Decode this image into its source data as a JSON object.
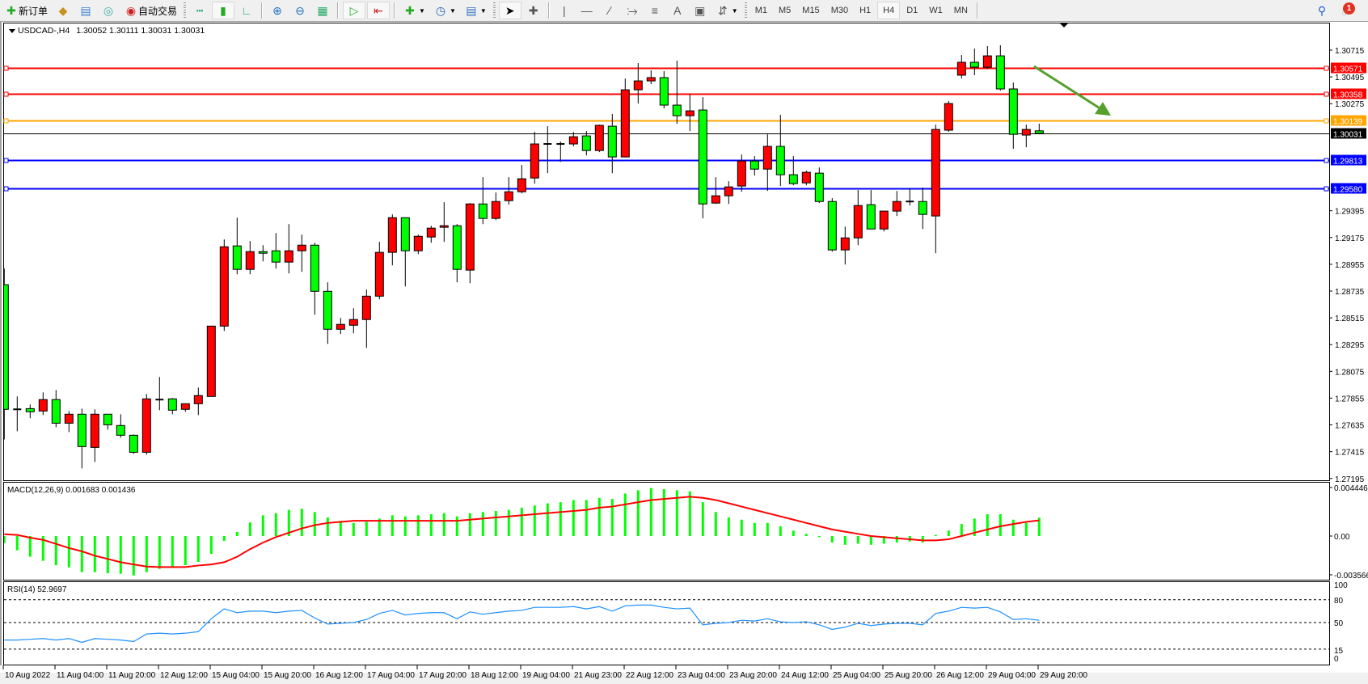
{
  "toolbar": {
    "new_order_label": "新订单",
    "auto_trading_label": "自动交易",
    "timeframes": [
      "M1",
      "M5",
      "M15",
      "M30",
      "H1",
      "H4",
      "D1",
      "W1",
      "MN"
    ],
    "active_timeframe": "H4",
    "notification_count": "1",
    "icons": [
      "new-order-icon",
      "gold-bars-icon",
      "market-watch-icon",
      "signals-icon",
      "auto-trading-icon",
      "bar-chart-icon",
      "candlestick-icon",
      "line-chart-icon",
      "zoom-in-icon",
      "zoom-out-icon",
      "tile-windows-icon",
      "auto-scroll-icon",
      "chart-shift-icon",
      "new-chart-icon",
      "periods-clock-icon",
      "templates-icon",
      "cursor-icon",
      "crosshair-icon",
      "vertical-line-icon",
      "horizontal-line-icon",
      "trendline-icon",
      "equidistant-channel-icon",
      "fibonacci-icon",
      "text-icon",
      "text-label-icon",
      "arrows-icon",
      "search-icon",
      "chat-icon"
    ]
  },
  "chart": {
    "symbol": "USDCAD-,H4",
    "quote": "1.30052 1.30111 1.30031 1.30031",
    "colors": {
      "bull": "#ff0000",
      "bear": "#00ff00",
      "background": "#ffffff",
      "macd_hist": "#00ff00",
      "macd_signal": "#ff0000",
      "rsi": "#1e90ff",
      "arrow": "#56a02e"
    },
    "price_ticks": [
      "1.30715",
      "1.30495",
      "1.30275",
      "1.29395",
      "1.29175",
      "1.28955",
      "1.28735",
      "1.28515",
      "1.28295",
      "1.28075",
      "1.27855",
      "1.27635",
      "1.27415",
      "1.27195"
    ],
    "levels": [
      {
        "price": "1.30571",
        "color": "#ff0000"
      },
      {
        "price": "1.30358",
        "color": "#ff0000"
      },
      {
        "price": "1.30139",
        "color": "#ffa500"
      },
      {
        "price": "1.30031",
        "color": "#000000",
        "current": true
      },
      {
        "price": "1.29813",
        "color": "#0000ff"
      },
      {
        "price": "1.29580",
        "color": "#0000ff"
      }
    ],
    "time_labels": [
      "10 Aug 2022",
      "11 Aug 04:00",
      "11 Aug 20:00",
      "12 Aug 12:00",
      "15 Aug 04:00",
      "15 Aug 20:00",
      "16 Aug 12:00",
      "17 Aug 04:00",
      "17 Aug 20:00",
      "18 Aug 12:00",
      "19 Aug 04:00",
      "21 Aug 23:00",
      "22 Aug 12:00",
      "23 Aug 04:00",
      "23 Aug 20:00",
      "24 Aug 12:00",
      "25 Aug 04:00",
      "25 Aug 20:00",
      "26 Aug 12:00",
      "29 Aug 04:00",
      "29 Aug 20:00"
    ]
  },
  "macd": {
    "label": "MACD(12,26,9) 0.001683 0.001436",
    "axis": {
      "max": "0.004446",
      "zero": "0.00",
      "min": "-0.003566"
    }
  },
  "rsi": {
    "label": "RSI(14) 52.9697",
    "levels": [
      "100",
      "80",
      "50",
      "15",
      "0"
    ]
  },
  "chart_data": [
    {
      "type": "candlestick",
      "title": "USDCAD-,H4",
      "ylim": [
        1.27195,
        1.30715
      ],
      "x_tick_labels": [
        "10 Aug 2022",
        "11 Aug 04:00",
        "11 Aug 20:00",
        "12 Aug 12:00",
        "15 Aug 04:00",
        "15 Aug 20:00",
        "16 Aug 12:00",
        "17 Aug 04:00",
        "17 Aug 20:00",
        "18 Aug 12:00",
        "19 Aug 04:00",
        "21 Aug 23:00",
        "22 Aug 12:00",
        "23 Aug 04:00",
        "23 Aug 20:00",
        "24 Aug 12:00",
        "25 Aug 04:00",
        "25 Aug 20:00",
        "26 Aug 12:00",
        "29 Aug 04:00",
        "29 Aug 20:00"
      ],
      "ohlc": [
        {
          "o": 1.28787,
          "h": 1.2892,
          "l": 1.27516,
          "c": 1.27763
        },
        {
          "o": 1.27763,
          "h": 1.27869,
          "l": 1.27583,
          "c": 1.27763
        },
        {
          "o": 1.27769,
          "h": 1.27803,
          "l": 1.2769,
          "c": 1.27743
        },
        {
          "o": 1.27749,
          "h": 1.27902,
          "l": 1.27716,
          "c": 1.27843
        },
        {
          "o": 1.27843,
          "h": 1.27922,
          "l": 1.27616,
          "c": 1.27649
        },
        {
          "o": 1.27649,
          "h": 1.27749,
          "l": 1.27576,
          "c": 1.27723
        },
        {
          "o": 1.27723,
          "h": 1.27769,
          "l": 1.27277,
          "c": 1.27457
        },
        {
          "o": 1.2745,
          "h": 1.27763,
          "l": 1.2733,
          "c": 1.27723
        },
        {
          "o": 1.27723,
          "h": 1.27723,
          "l": 1.27596,
          "c": 1.27636
        },
        {
          "o": 1.2763,
          "h": 1.27723,
          "l": 1.2753,
          "c": 1.2755
        },
        {
          "o": 1.2755,
          "h": 1.27556,
          "l": 1.27397,
          "c": 1.2741
        },
        {
          "o": 1.2741,
          "h": 1.27889,
          "l": 1.2739,
          "c": 1.27849
        },
        {
          "o": 1.27843,
          "h": 1.28029,
          "l": 1.27756,
          "c": 1.27843
        },
        {
          "o": 1.27849,
          "h": 1.27856,
          "l": 1.27723,
          "c": 1.27756
        },
        {
          "o": 1.27763,
          "h": 1.27809,
          "l": 1.27743,
          "c": 1.27809
        },
        {
          "o": 1.27809,
          "h": 1.27942,
          "l": 1.27716,
          "c": 1.27876
        },
        {
          "o": 1.27869,
          "h": 1.28447,
          "l": 1.27869,
          "c": 1.28447
        },
        {
          "o": 1.28447,
          "h": 1.29159,
          "l": 1.28407,
          "c": 1.29099
        },
        {
          "o": 1.29106,
          "h": 1.29338,
          "l": 1.28873,
          "c": 1.28913
        },
        {
          "o": 1.28913,
          "h": 1.29146,
          "l": 1.28873,
          "c": 1.29059
        },
        {
          "o": 1.29059,
          "h": 1.29112,
          "l": 1.28979,
          "c": 1.29046
        },
        {
          "o": 1.29066,
          "h": 1.29212,
          "l": 1.2892,
          "c": 1.28973
        },
        {
          "o": 1.28973,
          "h": 1.29285,
          "l": 1.2888,
          "c": 1.29066
        },
        {
          "o": 1.29066,
          "h": 1.29199,
          "l": 1.28893,
          "c": 1.29112
        },
        {
          "o": 1.29112,
          "h": 1.29132,
          "l": 1.2854,
          "c": 1.28733
        },
        {
          "o": 1.28733,
          "h": 1.28807,
          "l": 1.28301,
          "c": 1.28421
        },
        {
          "o": 1.28421,
          "h": 1.28514,
          "l": 1.28381,
          "c": 1.28461
        },
        {
          "o": 1.28454,
          "h": 1.28594,
          "l": 1.28388,
          "c": 1.28501
        },
        {
          "o": 1.28501,
          "h": 1.28747,
          "l": 1.28268,
          "c": 1.28693
        },
        {
          "o": 1.28693,
          "h": 1.29139,
          "l": 1.28667,
          "c": 1.29053
        },
        {
          "o": 1.29053,
          "h": 1.29365,
          "l": 1.28946,
          "c": 1.29338
        },
        {
          "o": 1.29338,
          "h": 1.29338,
          "l": 1.28773,
          "c": 1.29066
        },
        {
          "o": 1.29066,
          "h": 1.29199,
          "l": 1.29039,
          "c": 1.29185
        },
        {
          "o": 1.29179,
          "h": 1.29272,
          "l": 1.29132,
          "c": 1.29252
        },
        {
          "o": 1.29259,
          "h": 1.29465,
          "l": 1.29139,
          "c": 1.29272
        },
        {
          "o": 1.29272,
          "h": 1.29285,
          "l": 1.28807,
          "c": 1.28913
        },
        {
          "o": 1.28907,
          "h": 1.29458,
          "l": 1.288,
          "c": 1.29451
        },
        {
          "o": 1.29451,
          "h": 1.29671,
          "l": 1.29285,
          "c": 1.29332
        },
        {
          "o": 1.29332,
          "h": 1.29545,
          "l": 1.29318,
          "c": 1.29471
        },
        {
          "o": 1.29478,
          "h": 1.29671,
          "l": 1.29445,
          "c": 1.29551
        },
        {
          "o": 1.29551,
          "h": 1.29771,
          "l": 1.29538,
          "c": 1.29658
        },
        {
          "o": 1.29664,
          "h": 1.30043,
          "l": 1.29618,
          "c": 1.29944
        },
        {
          "o": 1.29944,
          "h": 1.3009,
          "l": 1.29704,
          "c": 1.29944
        },
        {
          "o": 1.29944,
          "h": 1.29964,
          "l": 1.29797,
          "c": 1.29944
        },
        {
          "o": 1.29944,
          "h": 1.30043,
          "l": 1.29924,
          "c": 1.30003
        },
        {
          "o": 1.3001,
          "h": 1.3005,
          "l": 1.2985,
          "c": 1.2989
        },
        {
          "o": 1.2989,
          "h": 1.30103,
          "l": 1.29877,
          "c": 1.30097
        },
        {
          "o": 1.3009,
          "h": 1.3019,
          "l": 1.29704,
          "c": 1.29837
        },
        {
          "o": 1.29837,
          "h": 1.30482,
          "l": 1.29837,
          "c": 1.30389
        },
        {
          "o": 1.30389,
          "h": 1.30609,
          "l": 1.30276,
          "c": 1.30462
        },
        {
          "o": 1.30462,
          "h": 1.30549,
          "l": 1.30436,
          "c": 1.30489
        },
        {
          "o": 1.30489,
          "h": 1.30542,
          "l": 1.30236,
          "c": 1.30263
        },
        {
          "o": 1.30263,
          "h": 1.30629,
          "l": 1.3011,
          "c": 1.30176
        },
        {
          "o": 1.30176,
          "h": 1.30349,
          "l": 1.3005,
          "c": 1.30216
        },
        {
          "o": 1.30223,
          "h": 1.30329,
          "l": 1.29332,
          "c": 1.29451
        },
        {
          "o": 1.29458,
          "h": 1.29671,
          "l": 1.29451,
          "c": 1.29518
        },
        {
          "o": 1.29518,
          "h": 1.29638,
          "l": 1.29451,
          "c": 1.29591
        },
        {
          "o": 1.29598,
          "h": 1.29857,
          "l": 1.29551,
          "c": 1.29804
        },
        {
          "o": 1.29804,
          "h": 1.29844,
          "l": 1.29684,
          "c": 1.29737
        },
        {
          "o": 1.29737,
          "h": 1.30023,
          "l": 1.29558,
          "c": 1.29924
        },
        {
          "o": 1.29924,
          "h": 1.30183,
          "l": 1.29598,
          "c": 1.29691
        },
        {
          "o": 1.29691,
          "h": 1.29844,
          "l": 1.29604,
          "c": 1.29618
        },
        {
          "o": 1.29624,
          "h": 1.29724,
          "l": 1.29604,
          "c": 1.29711
        },
        {
          "o": 1.29704,
          "h": 1.29751,
          "l": 1.29458,
          "c": 1.29471
        },
        {
          "o": 1.29471,
          "h": 1.29498,
          "l": 1.29059,
          "c": 1.29073
        },
        {
          "o": 1.29073,
          "h": 1.29265,
          "l": 1.28953,
          "c": 1.29172
        },
        {
          "o": 1.29172,
          "h": 1.29565,
          "l": 1.29112,
          "c": 1.29438
        },
        {
          "o": 1.29445,
          "h": 1.29565,
          "l": 1.29245,
          "c": 1.29245
        },
        {
          "o": 1.29245,
          "h": 1.29392,
          "l": 1.29225,
          "c": 1.29392
        },
        {
          "o": 1.29392,
          "h": 1.29558,
          "l": 1.29352,
          "c": 1.29471
        },
        {
          "o": 1.29471,
          "h": 1.29578,
          "l": 1.29438,
          "c": 1.29471
        },
        {
          "o": 1.29471,
          "h": 1.29585,
          "l": 1.29245,
          "c": 1.29365
        },
        {
          "o": 1.29352,
          "h": 1.30103,
          "l": 1.29046,
          "c": 1.30063
        },
        {
          "o": 1.30057,
          "h": 1.30296,
          "l": 1.30043,
          "c": 1.30276
        },
        {
          "o": 1.30509,
          "h": 1.30675,
          "l": 1.30482,
          "c": 1.30615
        },
        {
          "o": 1.30615,
          "h": 1.30728,
          "l": 1.30509,
          "c": 1.30575
        },
        {
          "o": 1.30575,
          "h": 1.30748,
          "l": 1.30562,
          "c": 1.30668
        },
        {
          "o": 1.30668,
          "h": 1.30755,
          "l": 1.30383,
          "c": 1.30396
        },
        {
          "o": 1.30396,
          "h": 1.30449,
          "l": 1.29904,
          "c": 1.30023
        },
        {
          "o": 1.30017,
          "h": 1.30103,
          "l": 1.29917,
          "c": 1.30063
        },
        {
          "o": 1.30052,
          "h": 1.30111,
          "l": 1.30031,
          "c": 1.30031
        }
      ]
    },
    {
      "type": "bar",
      "title": "MACD(12,26,9)",
      "ylim": [
        -0.003566,
        0.004446
      ],
      "histogram": [
        -0.00064,
        -0.00131,
        -0.0019,
        -0.00227,
        -0.00267,
        -0.00287,
        -0.00331,
        -0.00331,
        -0.00341,
        -0.00346,
        -0.00361,
        -0.00331,
        -0.00301,
        -0.00287,
        -0.00267,
        -0.00237,
        -0.00163,
        -0.00044,
        0.00037,
        0.00125,
        0.0019,
        0.0021,
        0.0024,
        0.0025,
        0.0022,
        0.0017,
        0.0014,
        0.0012,
        0.0013,
        0.0016,
        0.0019,
        0.0018,
        0.0019,
        0.002,
        0.0021,
        0.0018,
        0.0021,
        0.0022,
        0.0023,
        0.0024,
        0.0026,
        0.0028,
        0.003,
        0.0031,
        0.0033,
        0.0033,
        0.0035,
        0.0034,
        0.0039,
        0.0042,
        0.0044,
        0.0043,
        0.0042,
        0.0041,
        0.0031,
        0.0022,
        0.0017,
        0.0015,
        0.0012,
        0.0012,
        0.0009,
        0.0005,
        0.0002,
        -0.0001,
        -0.0006,
        -0.0008,
        -0.0007,
        -0.0008,
        -0.0007,
        -0.0006,
        -0.0005,
        -0.0006,
        0.0001,
        0.0005,
        0.0011,
        0.0016,
        0.002,
        0.002,
        0.0015,
        0.0012,
        0.001683
      ],
      "signal": [
        0.00017,
        0.0001,
        -0.00015,
        -0.00035,
        -0.00072,
        -0.0011,
        -0.0014,
        -0.0018,
        -0.0021,
        -0.0024,
        -0.0026,
        -0.0028,
        -0.00284,
        -0.00284,
        -0.00284,
        -0.0027,
        -0.0026,
        -0.0024,
        -0.0019,
        -0.0012,
        -0.0006,
        -0.0001,
        0.0003,
        0.0007,
        0.001,
        0.0012,
        0.0013,
        0.0014,
        0.0014,
        0.0014,
        0.0014,
        0.0014,
        0.0014,
        0.0014,
        0.0014,
        0.0014,
        0.0015,
        0.0016,
        0.0017,
        0.0018,
        0.0019,
        0.002,
        0.0021,
        0.0022,
        0.0023,
        0.0024,
        0.0026,
        0.0027,
        0.0029,
        0.0031,
        0.0033,
        0.0034,
        0.0035,
        0.0036,
        0.0035,
        0.0033,
        0.003,
        0.0027,
        0.0024,
        0.0021,
        0.0018,
        0.0015,
        0.0012,
        0.0009,
        0.0006,
        0.0004,
        0.0002,
        0.0,
        -0.0001,
        -0.0002,
        -0.0003,
        -0.0004,
        -0.0004,
        -0.0003,
        0.0,
        0.0003,
        0.0006,
        0.0009,
        0.0011,
        0.0013,
        0.001436
      ]
    },
    {
      "type": "line",
      "title": "RSI(14)",
      "ylim": [
        0,
        100
      ],
      "levels": [
        80,
        50,
        15
      ],
      "values": [
        27,
        27,
        28,
        29,
        27,
        29,
        24,
        29,
        28,
        27,
        25,
        35,
        36,
        35,
        36,
        38,
        55,
        68,
        63,
        65,
        65,
        63,
        65,
        66,
        56,
        48,
        49,
        50,
        54,
        62,
        66,
        60,
        62,
        63,
        63,
        55,
        64,
        61,
        63,
        65,
        66,
        70,
        70,
        70,
        71,
        68,
        71,
        65,
        72,
        73,
        73,
        70,
        68,
        69,
        47,
        49,
        50,
        53,
        52,
        55,
        51,
        50,
        51,
        47,
        41,
        44,
        49,
        46,
        48,
        49,
        49,
        47,
        62,
        65,
        70,
        69,
        70,
        64,
        54,
        55,
        52.9697
      ]
    }
  ]
}
